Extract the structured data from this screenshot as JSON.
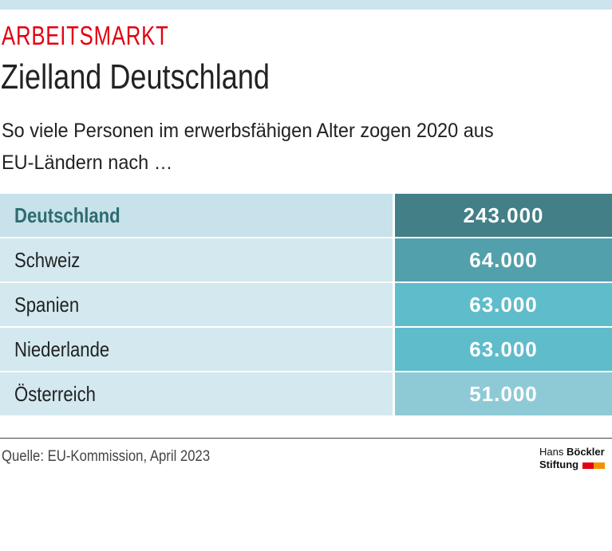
{
  "header": {
    "kicker": "ARBEITSMARKT",
    "title": "Zielland Deutschland",
    "subtitle_line1": "So viele Personen im erwerbsfähigen Alter zogen 2020 aus",
    "subtitle_line2": "EU-Ländern nach …"
  },
  "chart_data": {
    "type": "table",
    "rows": [
      {
        "country": "Deutschland",
        "value": "243.000",
        "color": "#427f87"
      },
      {
        "country": "Schweiz",
        "value": "64.000",
        "color": "#52a0ab"
      },
      {
        "country": "Spanien",
        "value": "63.000",
        "color": "#5fbccb"
      },
      {
        "country": "Niederlande",
        "value": "63.000",
        "color": "#5fbccb"
      },
      {
        "country": "Österreich",
        "value": "51.000",
        "color": "#8ecad6"
      }
    ]
  },
  "footer": {
    "source": "Quelle: EU-Kommission, April 2023",
    "logo_line1_light": "Hans",
    "logo_line1_bold": "Böckler",
    "logo_line2": "Stiftung",
    "logo_colors": [
      "#e3000f",
      "#f39200"
    ]
  },
  "colors": {
    "accent": "#e3000f",
    "band": "#cce4ee"
  }
}
